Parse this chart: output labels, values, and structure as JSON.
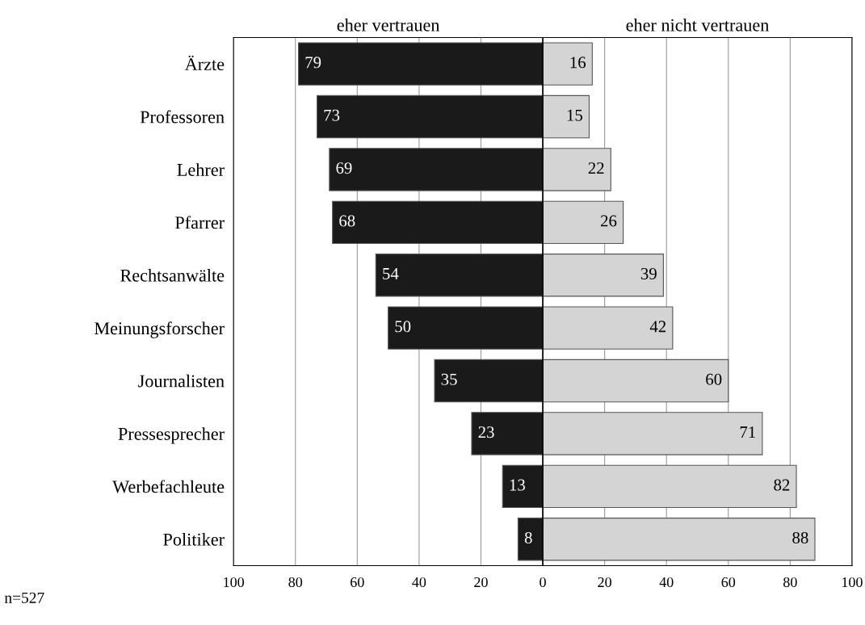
{
  "chart_data": {
    "type": "bar",
    "orientation": "horizontal",
    "categories": [
      "Ärzte",
      "Professoren",
      "Lehrer",
      "Pfarrer",
      "Rechtsanwälte",
      "Meinungsforscher",
      "Journalisten",
      "Pressesprecher",
      "Werbefachleute",
      "Politiker"
    ],
    "series": [
      {
        "name": "eher vertrauen",
        "color": "#1a1a1a",
        "values": [
          79,
          73,
          69,
          68,
          54,
          50,
          35,
          23,
          13,
          8
        ],
        "base": [
          -79,
          -73,
          -69,
          -68,
          -54,
          -50,
          -35,
          -23,
          -13,
          -8
        ]
      },
      {
        "name": "eher nicht vertrauen",
        "color": "#d4d4d4",
        "values": [
          16,
          15,
          22,
          26,
          39,
          42,
          60,
          71,
          82,
          88
        ],
        "base": [
          0,
          0,
          0,
          0,
          0,
          0,
          0,
          0,
          0,
          0
        ]
      }
    ],
    "data_labels": true,
    "xlim": [
      -100,
      100
    ],
    "xticks": [
      {
        "value": -100,
        "label": "100"
      },
      {
        "value": -80,
        "label": "80"
      },
      {
        "value": -60,
        "label": "60"
      },
      {
        "value": -40,
        "label": "40"
      },
      {
        "value": -20,
        "label": "20"
      },
      0,
      20,
      40,
      60,
      80,
      100
    ],
    "grid": "x",
    "annotations": [
      "n=527"
    ]
  }
}
